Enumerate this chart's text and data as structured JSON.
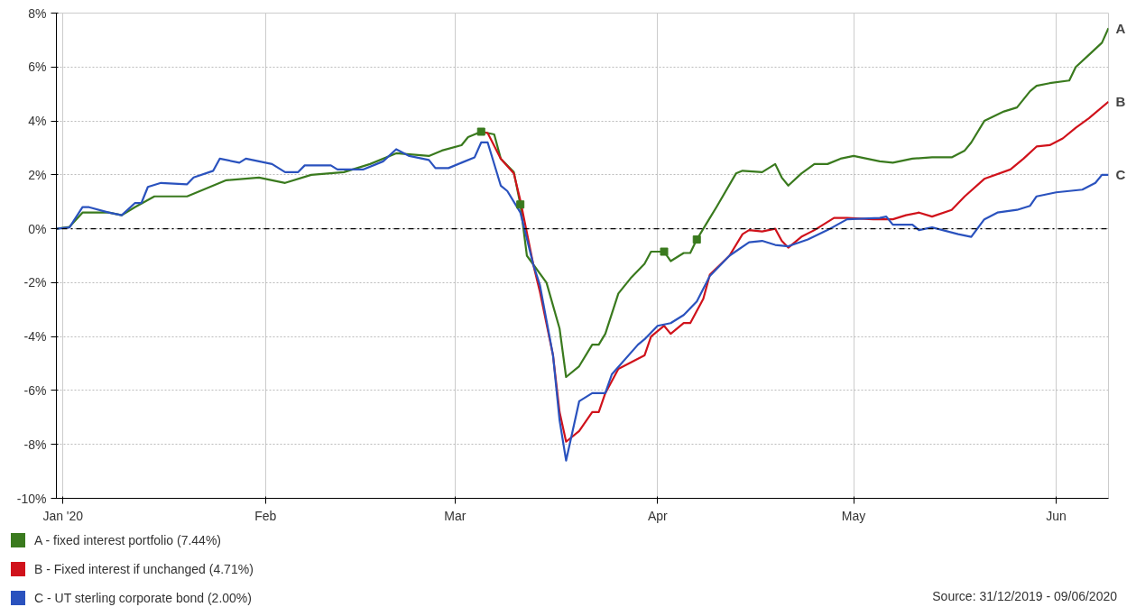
{
  "chart_data": {
    "type": "line",
    "xlim": [
      "2019-12-31",
      "2020-06-09"
    ],
    "xticks": [
      {
        "value": "2020-01-01",
        "label": "Jan '20"
      },
      {
        "value": "2020-02-01",
        "label": "Feb"
      },
      {
        "value": "2020-03-01",
        "label": "Mar"
      },
      {
        "value": "2020-04-01",
        "label": "Apr"
      },
      {
        "value": "2020-05-01",
        "label": "May"
      },
      {
        "value": "2020-06-01",
        "label": "Jun"
      }
    ],
    "ylim": [
      -10,
      8
    ],
    "yticks": [
      {
        "value": -10,
        "label": "-10%"
      },
      {
        "value": -8,
        "label": "-8%"
      },
      {
        "value": -6,
        "label": "-6%"
      },
      {
        "value": -4,
        "label": "-4%"
      },
      {
        "value": -2,
        "label": "-2%"
      },
      {
        "value": 0,
        "label": "0%"
      },
      {
        "value": 2,
        "label": "2%"
      },
      {
        "value": 4,
        "label": "4%"
      },
      {
        "value": 6,
        "label": "6%"
      },
      {
        "value": 8,
        "label": "8%"
      }
    ],
    "grid": true,
    "legend": "bottom",
    "line_style": "solid",
    "ref_lines": [
      {
        "axis": "y",
        "value": 0,
        "color": "#000000",
        "line_style": "dotted"
      }
    ],
    "series": [
      {
        "name": "A - fixed interest portfolio (7.44%)",
        "color": "#3a7a1e",
        "x": [
          "2019-12-31",
          "2020-01-02",
          "2020-01-04",
          "2020-01-08",
          "2020-01-10",
          "2020-01-12",
          "2020-01-15",
          "2020-01-20",
          "2020-01-24",
          "2020-01-26",
          "2020-01-31",
          "2020-02-04",
          "2020-02-08",
          "2020-02-13",
          "2020-02-17",
          "2020-02-21",
          "2020-02-26",
          "2020-02-28",
          "2020-03-02",
          "2020-03-03",
          "2020-03-05",
          "2020-03-07",
          "2020-03-08",
          "2020-03-10",
          "2020-03-11",
          "2020-03-12",
          "2020-03-15",
          "2020-03-17",
          "2020-03-18",
          "2020-03-20",
          "2020-03-22",
          "2020-03-23",
          "2020-03-24",
          "2020-03-26",
          "2020-03-28",
          "2020-03-30",
          "2020-03-31",
          "2020-04-02",
          "2020-04-03",
          "2020-04-05",
          "2020-04-06",
          "2020-04-07",
          "2020-04-09",
          "2020-04-10",
          "2020-04-13",
          "2020-04-14",
          "2020-04-17",
          "2020-04-19",
          "2020-04-20",
          "2020-04-21",
          "2020-04-23",
          "2020-04-25",
          "2020-04-27",
          "2020-04-29",
          "2020-05-01",
          "2020-05-03",
          "2020-05-05",
          "2020-05-07",
          "2020-05-10",
          "2020-05-13",
          "2020-05-16",
          "2020-05-18",
          "2020-05-19",
          "2020-05-21",
          "2020-05-24",
          "2020-05-26",
          "2020-05-28",
          "2020-05-29",
          "2020-05-31",
          "2020-06-03",
          "2020-06-04",
          "2020-06-06",
          "2020-06-08",
          "2020-06-09"
        ],
        "values": [
          0,
          0.07,
          0.6,
          0.6,
          0.5,
          0.8,
          1.2,
          1.2,
          1.6,
          1.8,
          1.9,
          1.7,
          2.0,
          2.1,
          2.4,
          2.8,
          2.7,
          2.9,
          3.1,
          3.4,
          3.6,
          3.5,
          2.6,
          2.1,
          0.9,
          -1.0,
          -2.0,
          -3.7,
          -5.5,
          -5.1,
          -4.3,
          -4.3,
          -3.9,
          -2.4,
          -1.8,
          -1.3,
          -0.85,
          -0.85,
          -1.2,
          -0.9,
          -0.9,
          -0.4,
          0.4,
          0.8,
          2.05,
          2.15,
          2.1,
          2.4,
          1.9,
          1.6,
          2.05,
          2.4,
          2.4,
          2.6,
          2.7,
          2.6,
          2.5,
          2.45,
          2.6,
          2.65,
          2.65,
          2.9,
          3.2,
          4.0,
          4.35,
          4.5,
          5.1,
          5.3,
          5.4,
          5.5,
          6.0,
          6.45,
          6.9,
          7.44
        ]
      },
      {
        "name": "B -  Fixed interest if unchanged (4.71%)",
        "color": "#d0121b",
        "x": [
          "2020-03-05",
          "2020-03-06",
          "2020-03-08",
          "2020-03-10",
          "2020-03-11",
          "2020-03-13",
          "2020-03-14",
          "2020-03-16",
          "2020-03-17",
          "2020-03-18",
          "2020-03-20",
          "2020-03-22",
          "2020-03-23",
          "2020-03-24",
          "2020-03-26",
          "2020-03-28",
          "2020-03-30",
          "2020-03-31",
          "2020-04-02",
          "2020-04-03",
          "2020-04-05",
          "2020-04-06",
          "2020-04-08",
          "2020-04-09",
          "2020-04-12",
          "2020-04-14",
          "2020-04-15",
          "2020-04-17",
          "2020-04-19",
          "2020-04-20",
          "2020-04-21",
          "2020-04-23",
          "2020-04-25",
          "2020-04-28",
          "2020-04-30",
          "2020-05-04",
          "2020-05-07",
          "2020-05-09",
          "2020-05-11",
          "2020-05-13",
          "2020-05-16",
          "2020-05-18",
          "2020-05-21",
          "2020-05-25",
          "2020-05-27",
          "2020-05-29",
          "2020-05-31",
          "2020-06-02",
          "2020-06-04",
          "2020-06-06",
          "2020-06-09"
        ],
        "values": [
          3.6,
          3.55,
          2.6,
          2.05,
          1.05,
          -1.35,
          -2.35,
          -4.7,
          -6.8,
          -7.9,
          -7.5,
          -6.8,
          -6.8,
          -6.1,
          -5.2,
          -4.95,
          -4.7,
          -4.0,
          -3.6,
          -3.9,
          -3.5,
          -3.5,
          -2.6,
          -1.7,
          -1.0,
          -0.2,
          -0.05,
          -0.1,
          0.0,
          -0.45,
          -0.7,
          -0.3,
          -0.05,
          0.4,
          0.4,
          0.35,
          0.35,
          0.5,
          0.6,
          0.45,
          0.7,
          1.2,
          1.85,
          2.2,
          2.6,
          3.05,
          3.1,
          3.35,
          3.75,
          4.1,
          4.71
        ]
      },
      {
        "name": "C - UT sterling corporate bond (2.00%)",
        "color": "#2a52be",
        "x": [
          "2019-12-31",
          "2020-01-02",
          "2020-01-04",
          "2020-01-05",
          "2020-01-08",
          "2020-01-10",
          "2020-01-12",
          "2020-01-13",
          "2020-01-14",
          "2020-01-16",
          "2020-01-20",
          "2020-01-21",
          "2020-01-24",
          "2020-01-25",
          "2020-01-28",
          "2020-01-29",
          "2020-02-02",
          "2020-02-04",
          "2020-02-06",
          "2020-02-07",
          "2020-02-11",
          "2020-02-12",
          "2020-02-16",
          "2020-02-18",
          "2020-02-19",
          "2020-02-21",
          "2020-02-23",
          "2020-02-26",
          "2020-02-27",
          "2020-02-29",
          "2020-03-02",
          "2020-03-04",
          "2020-03-05",
          "2020-03-06",
          "2020-03-08",
          "2020-03-09",
          "2020-03-11",
          "2020-03-13",
          "2020-03-14",
          "2020-03-16",
          "2020-03-17",
          "2020-03-18",
          "2020-03-20",
          "2020-03-22",
          "2020-03-24",
          "2020-03-25",
          "2020-03-29",
          "2020-03-30",
          "2020-04-01",
          "2020-04-03",
          "2020-04-05",
          "2020-04-07",
          "2020-04-09",
          "2020-04-12",
          "2020-04-15",
          "2020-04-17",
          "2020-04-19",
          "2020-04-21",
          "2020-04-24",
          "2020-04-27",
          "2020-04-30",
          "2020-05-05",
          "2020-05-06",
          "2020-05-07",
          "2020-05-10",
          "2020-05-11",
          "2020-05-13",
          "2020-05-17",
          "2020-05-19",
          "2020-05-21",
          "2020-05-23",
          "2020-05-26",
          "2020-05-28",
          "2020-05-29",
          "2020-06-01",
          "2020-06-05",
          "2020-06-07",
          "2020-06-08",
          "2020-06-09"
        ],
        "values": [
          0,
          0.05,
          0.8,
          0.8,
          0.6,
          0.5,
          0.95,
          0.95,
          1.55,
          1.7,
          1.65,
          1.9,
          2.15,
          2.6,
          2.45,
          2.6,
          2.4,
          2.1,
          2.1,
          2.35,
          2.35,
          2.2,
          2.2,
          2.4,
          2.5,
          2.95,
          2.7,
          2.55,
          2.25,
          2.25,
          2.45,
          2.65,
          3.2,
          3.2,
          1.6,
          1.4,
          0.6,
          -1.35,
          -2.1,
          -4.7,
          -7.1,
          -8.6,
          -6.4,
          -6.1,
          -6.1,
          -5.4,
          -4.3,
          -4.1,
          -3.6,
          -3.5,
          -3.2,
          -2.7,
          -1.75,
          -1.0,
          -0.5,
          -0.45,
          -0.6,
          -0.65,
          -0.4,
          -0.05,
          0.35,
          0.4,
          0.45,
          0.15,
          0.15,
          -0.05,
          0.05,
          -0.2,
          -0.3,
          0.35,
          0.6,
          0.7,
          0.85,
          1.2,
          1.35,
          1.45,
          1.7,
          2.0,
          2.0
        ]
      },
      {
        "type": "scatter",
        "marker": "square",
        "color": "#3a7a1e",
        "x": [
          "2020-03-05",
          "2020-03-11",
          "2020-04-02",
          "2020-04-07"
        ],
        "values": [
          3.6,
          0.9,
          -0.85,
          -0.4
        ]
      }
    ],
    "annotations": [
      {
        "text": "A",
        "x": "2020-06-09",
        "y": 7.44
      },
      {
        "text": "B",
        "x": "2020-06-09",
        "y": 4.71
      },
      {
        "text": "C",
        "x": "2020-06-09",
        "y": 2.0
      },
      "Source: 31/12/2019 - 09/06/2020"
    ]
  }
}
